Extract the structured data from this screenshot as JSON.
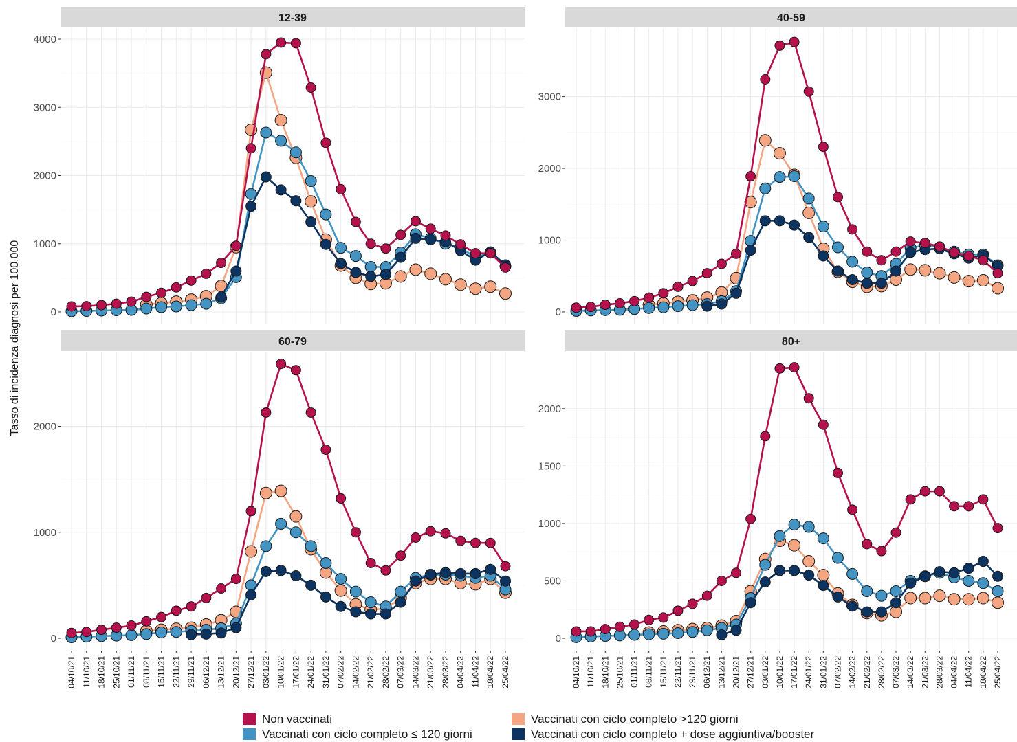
{
  "chart_data": {
    "type": "line",
    "ylabel": "Tasso di incidenza diagnosi per 100.000",
    "xlabel": "",
    "categories": [
      "04/10/21",
      "11/10/21",
      "18/10/21",
      "25/10/21",
      "01/11/21",
      "08/11/21",
      "15/11/21",
      "22/11/21",
      "29/11/21",
      "06/12/21",
      "13/12/21",
      "20/12/21",
      "27/12/21",
      "03/01/22",
      "10/01/22",
      "17/01/22",
      "24/01/22",
      "31/01/22",
      "07/02/22",
      "14/02/22",
      "21/02/22",
      "28/02/22",
      "07/03/22",
      "14/03/22",
      "21/03/22",
      "28/03/22",
      "04/04/22",
      "11/04/22",
      "18/04/22",
      "25/04/22"
    ],
    "grid": true,
    "legend_position": "bottom",
    "series_colors": {
      "Non vaccinati": "#b5124d",
      "Vaccinati con ciclo completo >120 giorni": "#f4a582",
      "Vaccinati con ciclo completo ≤ 120 giorni": "#4393c3",
      "Vaccinati con ciclo completo + dose aggiuntiva/booster": "#0d3461"
    },
    "legend": [
      "Non vaccinati",
      "Vaccinati con ciclo completo >120 giorni",
      "Vaccinati con ciclo completo ≤ 120 giorni",
      "Vaccinati con ciclo completo + dose aggiuntiva/booster"
    ],
    "panels": [
      {
        "title": "12-39",
        "ylim": [
          0,
          4000
        ],
        "yticks": [
          0,
          1000,
          2000,
          3000,
          4000
        ],
        "series": [
          {
            "name": "Vaccinati con ciclo completo >120 giorni",
            "values": [
              null,
              null,
              null,
              null,
              null,
              110,
              130,
              150,
              180,
              230,
              380,
              950,
              2670,
              3510,
              2810,
              2260,
              1620,
              1060,
              680,
              500,
              410,
              420,
              520,
              620,
              560,
              480,
              400,
              340,
              370,
              270
            ]
          },
          {
            "name": "Vaccinati con ciclo completo ≤ 120 giorni",
            "values": [
              10,
              15,
              20,
              25,
              30,
              50,
              70,
              80,
              100,
              120,
              200,
              510,
              1730,
              2630,
              2510,
              2340,
              1920,
              1430,
              940,
              820,
              660,
              660,
              870,
              1140,
              1080,
              1000,
              940,
              800,
              870,
              670
            ]
          },
          {
            "name": "Vaccinati con ciclo completo + dose aggiuntiva/booster",
            "values": [
              null,
              null,
              null,
              null,
              null,
              null,
              null,
              null,
              null,
              null,
              220,
              600,
              1550,
              1980,
              1790,
              1630,
              1320,
              990,
              710,
              580,
              520,
              550,
              800,
              1080,
              1060,
              1030,
              900,
              760,
              880,
              690
            ]
          },
          {
            "name": "Non vaccinati",
            "values": [
              80,
              85,
              100,
              120,
              150,
              220,
              280,
              360,
              460,
              560,
              720,
              970,
              2400,
              3780,
              3950,
              3940,
              3290,
              2480,
              1800,
              1320,
              1000,
              930,
              1130,
              1330,
              1220,
              1120,
              990,
              860,
              860,
              650
            ]
          }
        ]
      },
      {
        "title": "40-59",
        "ylim": [
          0,
          3800
        ],
        "yticks": [
          0,
          1000,
          2000,
          3000
        ],
        "series": [
          {
            "name": "Vaccinati con ciclo completo >120 giorni",
            "values": [
              null,
              null,
              null,
              null,
              null,
              100,
              120,
              140,
              160,
              200,
              270,
              470,
              1530,
              2390,
              2210,
              1910,
              1380,
              880,
              560,
              420,
              350,
              360,
              450,
              590,
              580,
              540,
              480,
              430,
              440,
              330
            ]
          },
          {
            "name": "Vaccinati con ciclo completo ≤ 120 giorni",
            "values": [
              15,
              20,
              25,
              30,
              40,
              55,
              65,
              80,
              95,
              110,
              150,
              290,
              990,
              1720,
              1880,
              1890,
              1580,
              1190,
              900,
              700,
              550,
              500,
              670,
              890,
              930,
              900,
              840,
              800,
              800,
              650
            ]
          },
          {
            "name": "Vaccinati con ciclo completo + dose aggiuntiva/booster",
            "values": [
              null,
              null,
              null,
              null,
              null,
              null,
              null,
              null,
              null,
              80,
              110,
              260,
              860,
              1270,
              1270,
              1210,
              1040,
              780,
              570,
              450,
              400,
              400,
              570,
              830,
              870,
              880,
              810,
              750,
              790,
              640
            ]
          },
          {
            "name": "Non vaccinati",
            "values": [
              60,
              70,
              100,
              120,
              150,
              200,
              260,
              350,
              430,
              540,
              670,
              810,
              1890,
              3240,
              3710,
              3760,
              3070,
              2300,
              1600,
              1150,
              840,
              720,
              840,
              980,
              960,
              910,
              830,
              780,
              720,
              540
            ]
          }
        ]
      },
      {
        "title": "60-79",
        "ylim": [
          0,
          2600
        ],
        "yticks": [
          0,
          1000,
          2000
        ],
        "series": [
          {
            "name": "Vaccinati con ciclo completo >120 giorni",
            "values": [
              null,
              null,
              null,
              null,
              null,
              70,
              80,
              90,
              100,
              130,
              170,
              250,
              820,
              1370,
              1390,
              1150,
              840,
              620,
              450,
              320,
              270,
              280,
              380,
              520,
              560,
              560,
              520,
              510,
              560,
              430
            ]
          },
          {
            "name": "Vaccinati con ciclo completo ≤ 120 giorni",
            "values": [
              10,
              15,
              20,
              25,
              30,
              40,
              55,
              60,
              70,
              80,
              95,
              140,
              500,
              870,
              1080,
              1000,
              870,
              710,
              560,
              440,
              340,
              300,
              440,
              570,
              600,
              600,
              590,
              570,
              590,
              460
            ]
          },
          {
            "name": "Vaccinati con ciclo completo + dose aggiuntiva/booster",
            "values": [
              null,
              null,
              null,
              null,
              null,
              null,
              null,
              null,
              35,
              40,
              50,
              100,
              410,
              630,
              640,
              590,
              500,
              390,
              300,
              250,
              230,
              230,
              340,
              540,
              600,
              620,
              610,
              610,
              650,
              540
            ]
          },
          {
            "name": "Non vaccinati",
            "values": [
              50,
              60,
              80,
              100,
              120,
              160,
              200,
              260,
              300,
              380,
              470,
              560,
              1200,
              2130,
              2590,
              2530,
              2130,
              1780,
              1320,
              1000,
              710,
              640,
              780,
              950,
              1010,
              990,
              920,
              900,
              900,
              680
            ]
          }
        ]
      },
      {
        "title": "80+",
        "ylim": [
          0,
          2400
        ],
        "yticks": [
          0,
          500,
          1000,
          1500,
          2000
        ],
        "series": [
          {
            "name": "Vaccinati con ciclo completo >120 giorni",
            "values": [
              null,
              null,
              null,
              null,
              null,
              50,
              60,
              70,
              80,
              90,
              110,
              150,
              410,
              690,
              850,
              810,
              670,
              550,
              390,
              290,
              220,
              200,
              230,
              350,
              350,
              370,
              340,
              340,
              350,
              310
            ]
          },
          {
            "name": "Vaccinati con ciclo completo ≤ 120 giorni",
            "values": [
              10,
              15,
              20,
              25,
              30,
              35,
              40,
              45,
              55,
              70,
              90,
              120,
              350,
              640,
              890,
              990,
              970,
              870,
              700,
              560,
              410,
              370,
              410,
              500,
              540,
              570,
              530,
              500,
              480,
              410
            ]
          },
          {
            "name": "Vaccinati con ciclo completo + dose aggiuntiva/booster",
            "values": [
              null,
              null,
              null,
              null,
              null,
              null,
              null,
              null,
              null,
              null,
              30,
              70,
              310,
              490,
              590,
              590,
              550,
              460,
              360,
              280,
              230,
              230,
              310,
              480,
              540,
              580,
              570,
              610,
              670,
              540
            ]
          },
          {
            "name": "Non vaccinati",
            "values": [
              60,
              60,
              80,
              100,
              120,
              160,
              180,
              240,
              300,
              370,
              500,
              570,
              1040,
              1760,
              2350,
              2360,
              2090,
              1860,
              1440,
              1120,
              820,
              760,
              920,
              1210,
              1280,
              1280,
              1150,
              1150,
              1210,
              960
            ]
          }
        ]
      }
    ]
  }
}
